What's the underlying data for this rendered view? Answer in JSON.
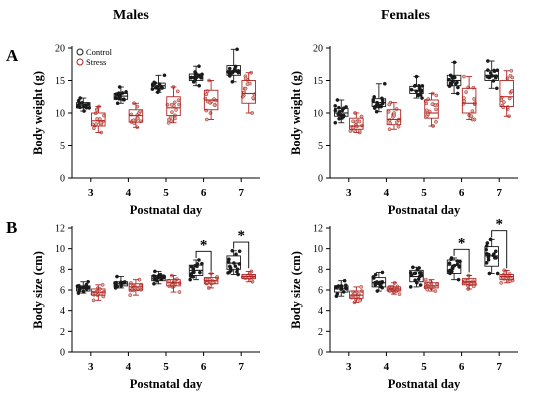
{
  "column_titles": {
    "left": "Males",
    "right": "Females"
  },
  "panel_letters": {
    "a": "A",
    "b": "B"
  },
  "legend": {
    "control": "Control",
    "stress": "Stress"
  },
  "colors": {
    "control": "#1a1a1a",
    "stress": "#b22222",
    "axis": "#000000"
  },
  "significance_marker": "*",
  "chart_data": [
    {
      "id": "males-weight",
      "type": "box-plot",
      "xlabel": "Postnatal day",
      "ylabel": "Body weight (g)",
      "categories": [
        "3",
        "4",
        "5",
        "6",
        "7"
      ],
      "ylim": [
        0,
        20
      ],
      "yticks": [
        0,
        5,
        10,
        15,
        20
      ],
      "legend": true,
      "legend_position": "top-left",
      "series": [
        {
          "name": "Control",
          "boxes": [
            {
              "min": 10.3,
              "q1": 10.8,
              "median": 11.2,
              "q3": 11.6,
              "max": 12.3
            },
            {
              "min": 11.5,
              "q1": 12.1,
              "median": 12.6,
              "q3": 13.0,
              "max": 14.0
            },
            {
              "min": 13.2,
              "q1": 13.8,
              "median": 14.2,
              "q3": 14.6,
              "max": 15.8
            },
            {
              "min": 14.2,
              "q1": 15.0,
              "median": 15.6,
              "q3": 16.0,
              "max": 17.2
            },
            {
              "min": 14.8,
              "q1": 15.8,
              "median": 16.5,
              "q3": 17.3,
              "max": 19.8
            }
          ]
        },
        {
          "name": "Stress",
          "boxes": [
            {
              "min": 7.0,
              "q1": 8.0,
              "median": 8.8,
              "q3": 10.0,
              "max": 11.0
            },
            {
              "min": 7.8,
              "q1": 8.6,
              "median": 9.6,
              "q3": 10.5,
              "max": 11.5
            },
            {
              "min": 8.5,
              "q1": 9.6,
              "median": 10.8,
              "q3": 12.5,
              "max": 14.0
            },
            {
              "min": 9.0,
              "q1": 10.5,
              "median": 12.0,
              "q3": 13.5,
              "max": 15.0
            },
            {
              "min": 10.0,
              "q1": 11.5,
              "median": 13.0,
              "q3": 15.0,
              "max": 16.2
            }
          ]
        }
      ],
      "significance": []
    },
    {
      "id": "females-weight",
      "type": "box-plot",
      "xlabel": "Postnatal day",
      "ylabel": "Body weight (g)",
      "categories": [
        "3",
        "4",
        "5",
        "6",
        "7"
      ],
      "ylim": [
        0,
        20
      ],
      "yticks": [
        0,
        5,
        10,
        15,
        20
      ],
      "legend": false,
      "series": [
        {
          "name": "Control",
          "boxes": [
            {
              "min": 8.5,
              "q1": 9.5,
              "median": 10.0,
              "q3": 10.7,
              "max": 12.0
            },
            {
              "min": 10.2,
              "q1": 11.0,
              "median": 11.6,
              "q3": 12.2,
              "max": 14.5
            },
            {
              "min": 12.3,
              "q1": 13.0,
              "median": 13.5,
              "q3": 14.1,
              "max": 15.6
            },
            {
              "min": 13.0,
              "q1": 14.2,
              "median": 15.0,
              "q3": 15.8,
              "max": 17.8
            },
            {
              "min": 13.8,
              "q1": 15.0,
              "median": 15.8,
              "q3": 16.5,
              "max": 18.0
            }
          ]
        },
        {
          "name": "Stress",
          "boxes": [
            {
              "min": 7.0,
              "q1": 7.5,
              "median": 8.0,
              "q3": 9.2,
              "max": 10.0
            },
            {
              "min": 7.5,
              "q1": 8.2,
              "median": 9.0,
              "q3": 10.5,
              "max": 11.6
            },
            {
              "min": 8.0,
              "q1": 9.2,
              "median": 10.0,
              "q3": 12.0,
              "max": 13.0
            },
            {
              "min": 9.0,
              "q1": 10.0,
              "median": 11.5,
              "q3": 13.8,
              "max": 15.6
            },
            {
              "min": 9.5,
              "q1": 11.0,
              "median": 12.5,
              "q3": 15.0,
              "max": 16.5
            }
          ]
        }
      ],
      "significance": []
    },
    {
      "id": "males-size",
      "type": "box-plot",
      "xlabel": "Postnatal day",
      "ylabel": "Body size (cm)",
      "categories": [
        "3",
        "4",
        "5",
        "6",
        "7"
      ],
      "ylim": [
        0,
        12
      ],
      "yticks": [
        0,
        2,
        4,
        6,
        8,
        10,
        12
      ],
      "legend": false,
      "series": [
        {
          "name": "Control",
          "boxes": [
            {
              "min": 5.7,
              "q1": 5.9,
              "median": 6.1,
              "q3": 6.4,
              "max": 6.8
            },
            {
              "min": 6.2,
              "q1": 6.4,
              "median": 6.6,
              "q3": 6.8,
              "max": 7.3
            },
            {
              "min": 6.6,
              "q1": 6.9,
              "median": 7.1,
              "q3": 7.4,
              "max": 7.8
            },
            {
              "min": 7.0,
              "q1": 7.4,
              "median": 7.9,
              "q3": 8.4,
              "max": 8.9
            },
            {
              "min": 7.5,
              "q1": 8.0,
              "median": 8.6,
              "q3": 9.3,
              "max": 9.8
            }
          ]
        },
        {
          "name": "Stress",
          "boxes": [
            {
              "min": 5.0,
              "q1": 5.5,
              "median": 5.8,
              "q3": 6.1,
              "max": 6.5
            },
            {
              "min": 5.5,
              "q1": 6.0,
              "median": 6.3,
              "q3": 6.6,
              "max": 7.0
            },
            {
              "min": 5.8,
              "q1": 6.4,
              "median": 6.7,
              "q3": 7.0,
              "max": 7.4
            },
            {
              "min": 6.2,
              "q1": 6.6,
              "median": 6.9,
              "q3": 7.2,
              "max": 7.6
            },
            {
              "min": 6.8,
              "q1": 7.1,
              "median": 7.3,
              "q3": 7.5,
              "max": 7.8
            }
          ]
        }
      ],
      "significance": [
        {
          "category_index": 3
        },
        {
          "category_index": 4
        }
      ]
    },
    {
      "id": "females-size",
      "type": "box-plot",
      "xlabel": "Postnatal day",
      "ylabel": "Body size (cm)",
      "categories": [
        "3",
        "4",
        "5",
        "6",
        "7"
      ],
      "ylim": [
        0,
        12
      ],
      "yticks": [
        0,
        2,
        4,
        6,
        8,
        10,
        12
      ],
      "legend": false,
      "series": [
        {
          "name": "Control",
          "boxes": [
            {
              "min": 5.4,
              "q1": 5.8,
              "median": 6.1,
              "q3": 6.4,
              "max": 6.9
            },
            {
              "min": 5.9,
              "q1": 6.3,
              "median": 6.7,
              "q3": 7.2,
              "max": 7.7
            },
            {
              "min": 6.3,
              "q1": 6.8,
              "median": 7.3,
              "q3": 7.9,
              "max": 8.2
            },
            {
              "min": 7.0,
              "q1": 7.6,
              "median": 8.4,
              "q3": 8.9,
              "max": 9.1
            },
            {
              "min": 7.6,
              "q1": 8.3,
              "median": 9.3,
              "q3": 10.2,
              "max": 10.9
            }
          ]
        },
        {
          "name": "Stress",
          "boxes": [
            {
              "min": 4.8,
              "q1": 5.2,
              "median": 5.5,
              "q3": 5.9,
              "max": 6.3
            },
            {
              "min": 5.6,
              "q1": 5.9,
              "median": 6.1,
              "q3": 6.3,
              "max": 6.7
            },
            {
              "min": 5.9,
              "q1": 6.2,
              "median": 6.4,
              "q3": 6.7,
              "max": 7.0
            },
            {
              "min": 6.1,
              "q1": 6.5,
              "median": 6.8,
              "q3": 7.1,
              "max": 7.4
            },
            {
              "min": 6.7,
              "q1": 7.0,
              "median": 7.3,
              "q3": 7.5,
              "max": 7.9
            }
          ]
        }
      ],
      "significance": [
        {
          "category_index": 3
        },
        {
          "category_index": 4
        }
      ]
    }
  ]
}
